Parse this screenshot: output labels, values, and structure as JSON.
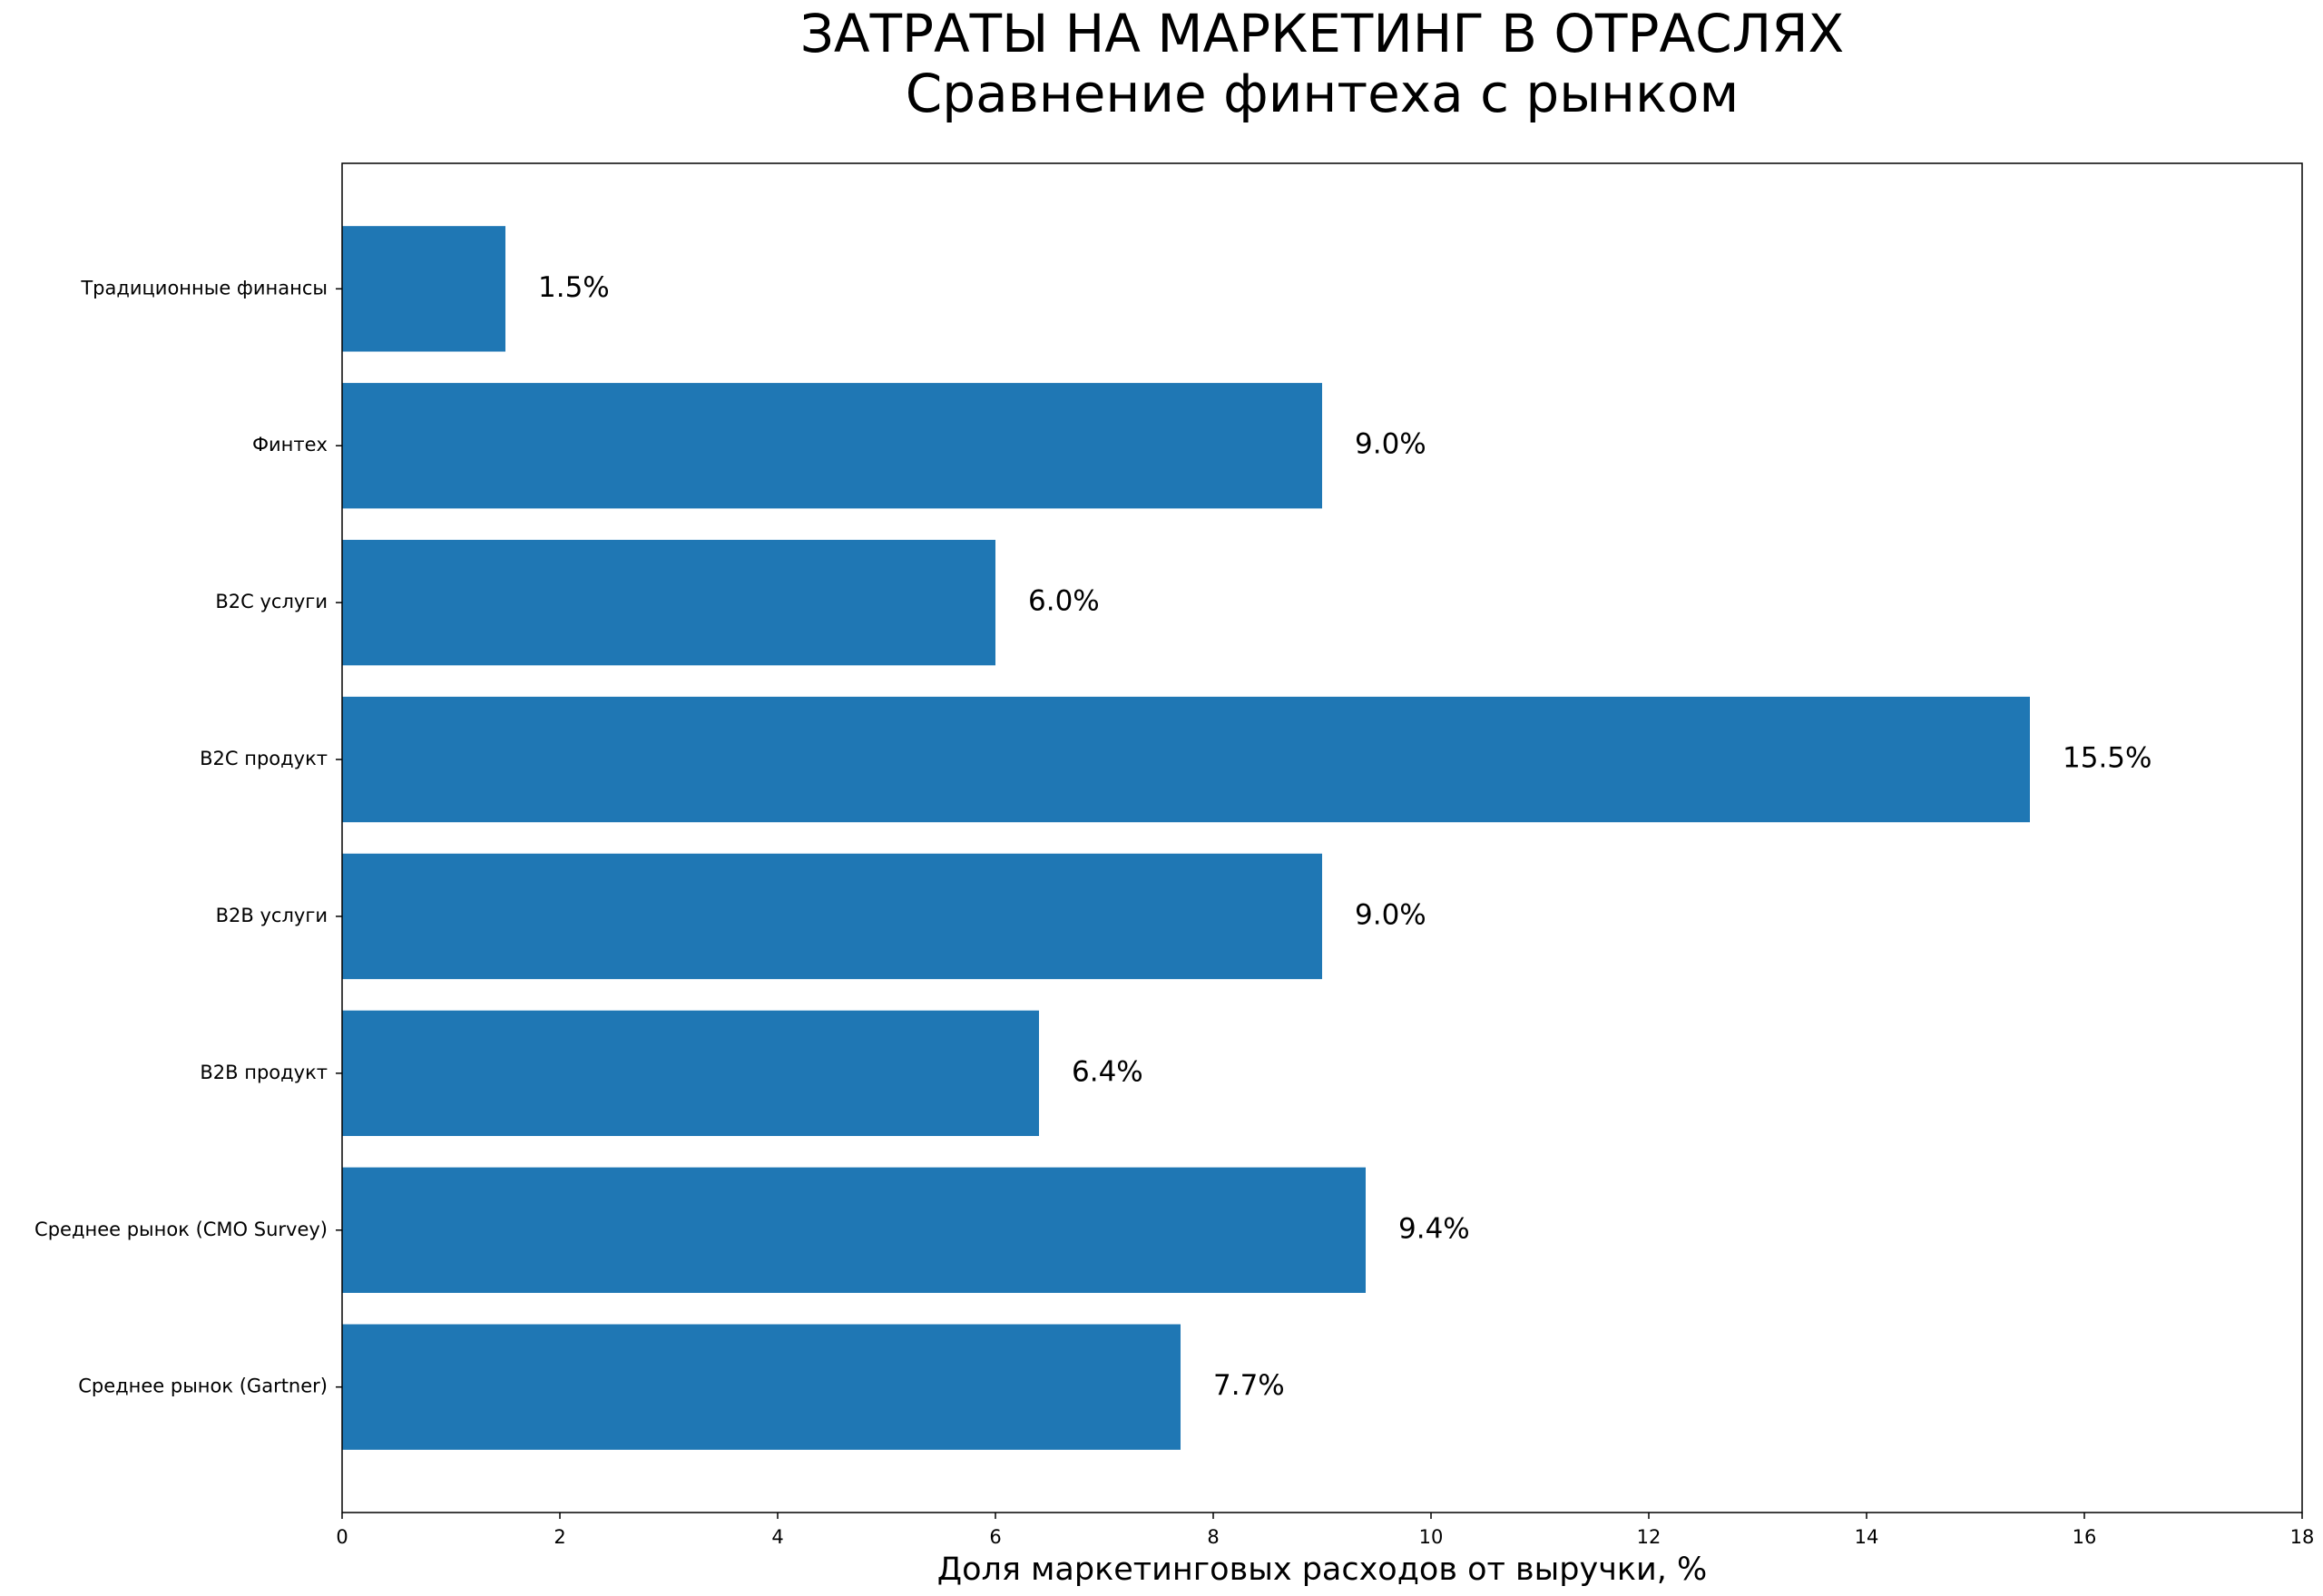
{
  "chart_data": {
    "type": "barh",
    "title": "ЗАТРАТЫ НА МАРКЕТИНГ В ОТРАСЛЯХ",
    "subtitle": "Сравнение финтеха с рынком",
    "x_label": "Доля маркетинговых расходов от выручки, %",
    "categories": [
      "Традиционные финансы",
      "Финтех",
      "B2C услуги",
      "B2C продукт",
      "B2B услуги",
      "B2B продукт",
      "Среднее рынок (CMO Survey)",
      "Среднее рынок (Gartner)"
    ],
    "values": [
      1.5,
      9.0,
      6.0,
      15.5,
      9.0,
      6.4,
      9.4,
      7.7
    ],
    "value_labels": [
      "1.5%",
      "9.0%",
      "6.0%",
      "15.5%",
      "9.0%",
      "6.4%",
      "9.4%",
      "7.7%"
    ],
    "color": "#1f77b4",
    "xlim": [
      0,
      18
    ],
    "xticks": [
      0,
      2,
      4,
      6,
      8,
      10,
      12,
      14,
      16,
      18
    ],
    "grid": false
  }
}
